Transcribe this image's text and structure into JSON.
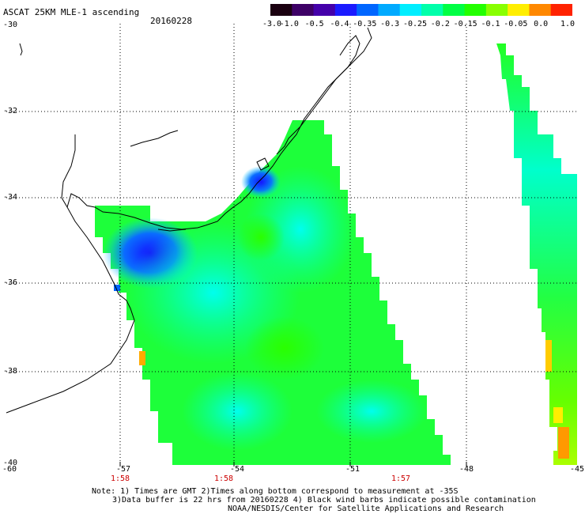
{
  "header": {
    "title": "ASCAT 25KM MLE-1 ascending",
    "date": "20160228"
  },
  "colorbar": {
    "ticks": [
      "-3.0",
      "-1.0",
      "-0.5",
      "-0.4",
      "-0.35",
      "-0.3",
      "-0.25",
      "-0.2",
      "-0.15",
      "-0.1",
      "-0.05",
      "0.0",
      "1.0"
    ],
    "colors": [
      "#1a0010",
      "#3d0066",
      "#4400aa",
      "#1a1aff",
      "#0066ff",
      "#00aaff",
      "#00eeff",
      "#00ffaa",
      "#00ff44",
      "#22ff00",
      "#88ff00",
      "#ffee00",
      "#ff8800",
      "#ff2200"
    ]
  },
  "axes": {
    "lat_labels": [
      "-30",
      "-32",
      "-34",
      "-36",
      "-38",
      "-40"
    ],
    "lon_labels": [
      "-60",
      "-57",
      "-54",
      "-51",
      "-48",
      "-45"
    ],
    "time_labels": [
      "1:58",
      "1:58",
      "1:57"
    ]
  },
  "notes": {
    "line1": "Note: 1) Times are GMT 2)Times along bottom correspond to measurement at -35S",
    "line2": "3)Data buffer is 22 hrs from 20160228 4) Black wind barbs indicate possible contamination",
    "line3": "NOAA/NESDIS/Center for Satellite Applications and Research"
  }
}
